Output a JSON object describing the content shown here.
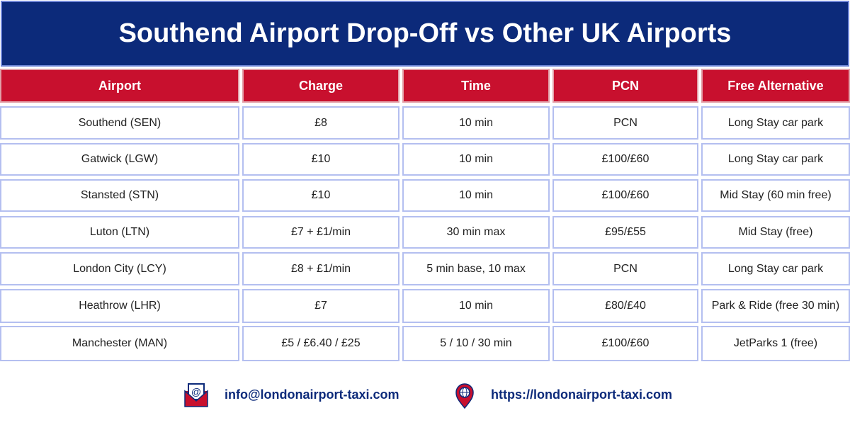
{
  "title": "Southend Airport Drop-Off vs Other UK Airports",
  "table": {
    "header": [
      "Airport",
      "Charge",
      "Time",
      "PCN",
      "Free Alternative"
    ],
    "rows": [
      [
        "Southend (SEN)",
        "£8",
        "10 min",
        "PCN",
        "Long Stay car park"
      ],
      [
        "Gatwick (LGW)",
        "£10",
        "10 min",
        "£100/£60",
        "Long Stay car park"
      ],
      [
        "Stansted (STN)",
        "£10",
        "10 min",
        "£100/£60",
        "Mid Stay (60 min free)"
      ],
      [
        "Luton (LTN)",
        "£7 + £1/min",
        "30 min max",
        "£95/£55",
        "Mid Stay (free)"
      ],
      [
        "London City (LCY)",
        "£8 + £1/min",
        "5 min base, 10 max",
        "PCN",
        "Long Stay car park"
      ],
      [
        "Heathrow (LHR)",
        "£7",
        "10 min",
        "£80/£40",
        "Park & Ride (free 30 min)"
      ],
      [
        "Manchester (MAN)",
        "£5 / £6.40 / £25",
        "5 / 10 / 30 min",
        "£100/£60",
        "JetParks 1 (free)"
      ]
    ]
  },
  "footer": {
    "email": "info@londonairport-taxi.com",
    "website": "https://londonairport-taxi.com"
  }
}
